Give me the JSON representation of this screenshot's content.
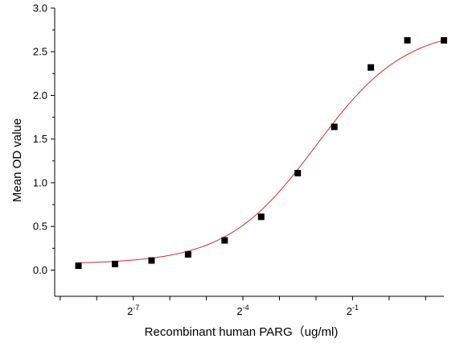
{
  "chart_data": {
    "type": "scatter",
    "title": "",
    "xlabel": "Recombinant human  PARG（ug/ml)",
    "ylabel": "Mean OD value",
    "x_scale": "log2",
    "xlim": [
      -9.15,
      1.5
    ],
    "ylim": [
      -0.3,
      3.0
    ],
    "yticks": [
      "0.0",
      "0.5",
      "1.0",
      "1.5",
      "2.0",
      "2.5",
      "3.0"
    ],
    "xticks": [
      {
        "base": "2",
        "exp": "-7"
      },
      {
        "base": "2",
        "exp": "-4"
      },
      {
        "base": "2",
        "exp": "-1"
      }
    ],
    "grid": false,
    "series": [
      {
        "marker": "square",
        "color": "#000000",
        "x": [
          -8,
          -7,
          -6,
          -5,
          -4,
          -3,
          -2,
          -1,
          0
        ],
        "y": [
          0.05,
          0.07,
          0.11,
          0.18,
          0.34,
          0.61,
          1.11,
          1.64,
          2.32
        ],
        "x_continued": [
          1
        ],
        "y_continued": [
          2.63
        ]
      }
    ],
    "points": [
      {
        "x": -8.5,
        "y": 0.05
      },
      {
        "x": -7.5,
        "y": 0.07
      },
      {
        "x": -6.5,
        "y": 0.11
      },
      {
        "x": -5.5,
        "y": 0.18
      },
      {
        "x": -4.5,
        "y": 0.34
      },
      {
        "x": -3.5,
        "y": 0.61
      },
      {
        "x": -2.5,
        "y": 1.11
      },
      {
        "x": -1.5,
        "y": 1.64
      },
      {
        "x": -0.5,
        "y": 2.32
      },
      {
        "x": 0.5,
        "y": 2.63
      },
      {
        "x": 1.5,
        "y": 2.63
      }
    ],
    "fit": {
      "model": "4PL",
      "color": "#cc2a36",
      "bottom": 0.07,
      "top": 2.78,
      "ec50_log2": -2.0,
      "hill_log2_slope": 0.62
    }
  }
}
